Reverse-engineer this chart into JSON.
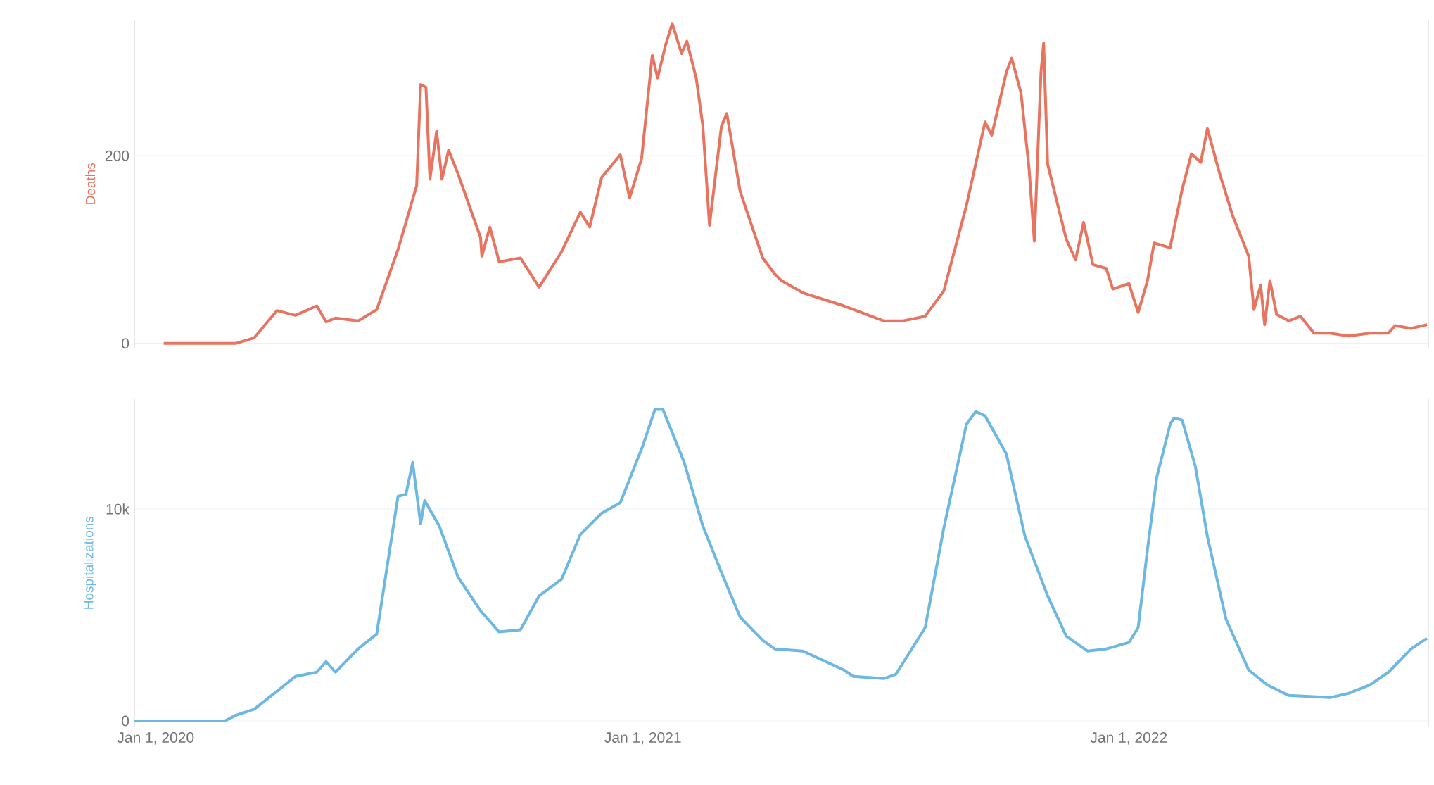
{
  "chart_data": [
    {
      "type": "line",
      "ylabel": "Deaths",
      "grid": "y",
      "tick_labels": "y",
      "xlim": [
        "2019-12-16",
        "2022-08-14"
      ],
      "ylim": [
        -5,
        345
      ],
      "yticks": [
        0,
        200
      ],
      "x": [
        "2020-01-07",
        "2020-03-01",
        "2020-03-15",
        "2020-04-01",
        "2020-04-15",
        "2020-05-01",
        "2020-05-08",
        "2020-05-15",
        "2020-06-01",
        "2020-06-15",
        "2020-07-01",
        "2020-07-15",
        "2020-07-18",
        "2020-07-22",
        "2020-07-25",
        "2020-07-30",
        "2020-08-03",
        "2020-08-08",
        "2020-08-15",
        "2020-09-01",
        "2020-09-02",
        "2020-09-08",
        "2020-09-15",
        "2020-10-01",
        "2020-10-15",
        "2020-11-01",
        "2020-11-15",
        "2020-11-22",
        "2020-12-01",
        "2020-12-15",
        "2020-12-22",
        "2020-12-31",
        "2021-01-08",
        "2021-01-12",
        "2021-01-18",
        "2021-01-23",
        "2021-01-30",
        "2021-02-03",
        "2021-02-10",
        "2021-02-15",
        "2021-02-20",
        "2021-03-01",
        "2021-03-05",
        "2021-03-15",
        "2021-04-01",
        "2021-04-10",
        "2021-04-15",
        "2021-05-01",
        "2021-06-01",
        "2021-07-01",
        "2021-07-15",
        "2021-08-01",
        "2021-08-15",
        "2021-09-01",
        "2021-09-15",
        "2021-09-20",
        "2021-10-01",
        "2021-10-05",
        "2021-10-12",
        "2021-10-18",
        "2021-10-22",
        "2021-10-27",
        "2021-10-29",
        "2021-11-01",
        "2021-11-15",
        "2021-11-22",
        "2021-11-28",
        "2021-12-05",
        "2021-12-15",
        "2021-12-20",
        "2022-01-01",
        "2022-01-08",
        "2022-01-15",
        "2022-01-20",
        "2022-02-01",
        "2022-02-10",
        "2022-02-17",
        "2022-02-24",
        "2022-03-01",
        "2022-03-10",
        "2022-03-20",
        "2022-04-01",
        "2022-04-05",
        "2022-04-10",
        "2022-04-13",
        "2022-04-17",
        "2022-04-22",
        "2022-05-01",
        "2022-05-10",
        "2022-05-20",
        "2022-06-01",
        "2022-06-15",
        "2022-07-01",
        "2022-07-15",
        "2022-07-20",
        "2022-08-01",
        "2022-08-13"
      ],
      "series": [
        {
          "color": "#e8735f",
          "values": [
            0,
            0,
            6,
            35,
            30,
            40,
            23,
            27,
            24,
            36,
            100,
            168,
            276,
            273,
            175,
            226,
            175,
            206,
            181,
            113,
            93,
            124,
            87,
            91,
            60,
            98,
            140,
            124,
            177,
            201,
            155,
            197,
            307,
            283,
            318,
            341,
            309,
            322,
            283,
            232,
            126,
            232,
            245,
            162,
            91,
            74,
            67,
            54,
            40,
            24,
            24,
            29,
            56,
            147,
            236,
            222,
            289,
            304,
            267,
            187,
            109,
            289,
            320,
            191,
            111,
            89,
            129,
            84,
            80,
            58,
            64,
            33,
            67,
            107,
            102,
            164,
            202,
            193,
            229,
            182,
            136,
            93,
            36,
            62,
            20,
            67,
            31,
            24,
            29,
            11,
            11,
            8,
            11,
            11,
            19,
            16,
            20
          ]
        }
      ]
    },
    {
      "type": "line",
      "ylabel": "Hospitalizations",
      "grid": "y",
      "xlim": [
        "2019-12-16",
        "2022-08-14"
      ],
      "ylim": [
        -300,
        15200
      ],
      "yticks": [
        0,
        {
          "value": 10000,
          "label": "10k"
        }
      ],
      "xticks": [
        {
          "value": "2020-01-01",
          "label": "Jan 1, 2020"
        },
        {
          "value": "2021-01-01",
          "label": "Jan 1, 2021"
        },
        {
          "value": "2022-01-01",
          "label": "Jan 1, 2022"
        }
      ],
      "x": [
        "2019-12-16",
        "2020-02-22",
        "2020-03-01",
        "2020-03-15",
        "2020-04-01",
        "2020-04-15",
        "2020-05-01",
        "2020-05-08",
        "2020-05-15",
        "2020-06-01",
        "2020-06-15",
        "2020-07-01",
        "2020-07-07",
        "2020-07-12",
        "2020-07-18",
        "2020-07-21",
        "2020-08-01",
        "2020-08-15",
        "2020-09-01",
        "2020-09-15",
        "2020-10-01",
        "2020-10-15",
        "2020-11-01",
        "2020-11-15",
        "2020-12-01",
        "2020-12-15",
        "2021-01-01",
        "2021-01-10",
        "2021-01-16",
        "2021-02-01",
        "2021-02-15",
        "2021-03-01",
        "2021-03-15",
        "2021-04-01",
        "2021-04-10",
        "2021-05-01",
        "2021-06-01",
        "2021-06-08",
        "2021-07-01",
        "2021-07-10",
        "2021-08-01",
        "2021-08-15",
        "2021-09-01",
        "2021-09-08",
        "2021-09-15",
        "2021-10-01",
        "2021-10-15",
        "2021-11-01",
        "2021-11-15",
        "2021-12-01",
        "2021-12-15",
        "2022-01-01",
        "2022-01-08",
        "2022-01-15",
        "2022-01-22",
        "2022-02-01",
        "2022-02-04",
        "2022-02-10",
        "2022-02-20",
        "2022-03-01",
        "2022-03-15",
        "2022-04-01",
        "2022-04-15",
        "2022-05-01",
        "2022-06-01",
        "2022-06-15",
        "2022-07-01",
        "2022-07-15",
        "2022-08-01",
        "2022-08-13"
      ],
      "series": [
        {
          "color": "#6cb8e2",
          "values": [
            0,
            0,
            260,
            550,
            1400,
            2100,
            2300,
            2800,
            2300,
            3400,
            4100,
            10600,
            10700,
            12200,
            9300,
            10400,
            9200,
            6800,
            5200,
            4200,
            4300,
            5900,
            6700,
            8800,
            9800,
            10300,
            13000,
            14700,
            14700,
            12200,
            9200,
            7000,
            4900,
            3800,
            3400,
            3300,
            2400,
            2100,
            2000,
            2200,
            4400,
            9100,
            14000,
            14600,
            14400,
            12600,
            8700,
            5900,
            4000,
            3300,
            3400,
            3700,
            4400,
            8100,
            11500,
            14000,
            14300,
            14200,
            12000,
            8700,
            4800,
            2400,
            1700,
            1200,
            1100,
            1300,
            1700,
            2300,
            3400,
            3900
          ]
        }
      ]
    }
  ]
}
